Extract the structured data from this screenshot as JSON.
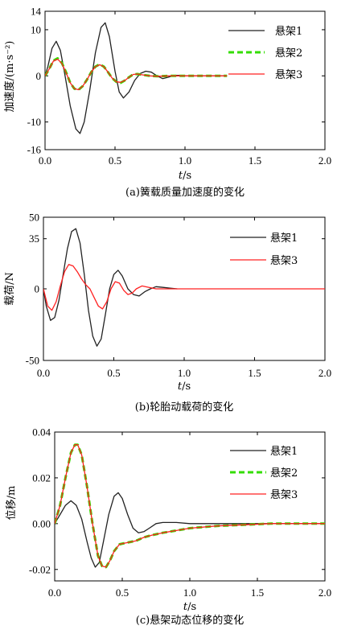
{
  "chart_data": [
    {
      "type": "line",
      "caption": "(a)簧载质量加速度的变化",
      "ylabel": "加速度/(m·s⁻²)",
      "xlabel_italic": "t",
      "xlabel_unit": "/s",
      "xlim": [
        0,
        2.0
      ],
      "ylim": [
        -16,
        14
      ],
      "xticks": [
        "0.0",
        "0.5",
        "1.0",
        "1.5",
        "2.0"
      ],
      "yticks": [
        14,
        10,
        0,
        -10,
        -16
      ],
      "grid": false,
      "legend_position": "top-right",
      "series": [
        {
          "name": "悬架1",
          "color": "#222222",
          "style": "solid",
          "x": [
            0,
            0.02,
            0.05,
            0.08,
            0.11,
            0.14,
            0.18,
            0.22,
            0.25,
            0.28,
            0.32,
            0.36,
            0.4,
            0.43,
            0.46,
            0.5,
            0.53,
            0.56,
            0.6,
            0.64,
            0.68,
            0.72,
            0.76,
            0.8,
            0.84,
            0.88,
            0.92,
            0.96,
            1.0,
            1.1,
            1.2,
            1.3
          ],
          "y": [
            0,
            2.0,
            6.0,
            7.5,
            5.5,
            0.5,
            -6.5,
            -11.5,
            -12.5,
            -10.0,
            -3.0,
            5.0,
            10.5,
            11.5,
            8.5,
            1.0,
            -3.5,
            -4.8,
            -3.5,
            -1.0,
            0.5,
            1.0,
            0.8,
            0.0,
            -0.6,
            -0.3,
            0.1,
            0.1,
            0,
            0,
            0,
            0
          ]
        },
        {
          "name": "悬架2",
          "color": "#33dd00",
          "style": "dashed",
          "x": [
            0,
            0.03,
            0.06,
            0.09,
            0.12,
            0.15,
            0.18,
            0.21,
            0.24,
            0.27,
            0.3,
            0.33,
            0.36,
            0.39,
            0.42,
            0.45,
            0.48,
            0.51,
            0.54,
            0.57,
            0.6,
            0.63,
            0.66,
            0.7,
            0.75,
            0.8,
            0.9,
            1.0,
            1.1,
            1.2,
            1.3
          ],
          "y": [
            0,
            1.5,
            3.3,
            3.8,
            2.8,
            0.8,
            -1.5,
            -2.8,
            -3.0,
            -2.2,
            -0.8,
            0.8,
            2.0,
            2.5,
            2.0,
            0.8,
            -0.5,
            -1.3,
            -1.5,
            -1.0,
            -0.3,
            0.3,
            0.4,
            0.2,
            0.0,
            -0.1,
            0,
            0,
            0,
            0,
            0
          ]
        },
        {
          "name": "悬架3",
          "color": "#ff2020",
          "style": "solid",
          "x": [
            0,
            0.03,
            0.06,
            0.09,
            0.12,
            0.15,
            0.18,
            0.21,
            0.24,
            0.27,
            0.3,
            0.33,
            0.36,
            0.39,
            0.42,
            0.45,
            0.48,
            0.51,
            0.54,
            0.57,
            0.6,
            0.63,
            0.66,
            0.7,
            0.75,
            0.8,
            0.9,
            1.0,
            1.1,
            1.2,
            1.3
          ],
          "y": [
            0,
            1.5,
            3.2,
            3.6,
            2.7,
            0.7,
            -1.5,
            -2.8,
            -3.0,
            -2.2,
            -0.8,
            0.8,
            2.0,
            2.4,
            2.0,
            0.8,
            -0.5,
            -1.3,
            -1.4,
            -1.0,
            -0.3,
            0.3,
            0.4,
            0.2,
            0.0,
            -0.1,
            0,
            0,
            0,
            0,
            0
          ]
        }
      ]
    },
    {
      "type": "line",
      "caption": "(b)轮胎动载荷的变化",
      "ylabel": "载荷/N",
      "xlabel_italic": "t",
      "xlabel_unit": "/s",
      "xlim": [
        0,
        2.0
      ],
      "ylim": [
        -50,
        50
      ],
      "xticks": [
        "0.0",
        "0.5",
        "1.0",
        "1.5",
        "2.0"
      ],
      "yticks": [
        50,
        35,
        0,
        -50
      ],
      "grid": false,
      "legend_position": "top-right",
      "series": [
        {
          "name": "悬架1",
          "color": "#222222",
          "style": "solid",
          "x": [
            0,
            0.02,
            0.05,
            0.08,
            0.11,
            0.14,
            0.17,
            0.2,
            0.23,
            0.26,
            0.29,
            0.32,
            0.35,
            0.38,
            0.41,
            0.44,
            0.47,
            0.5,
            0.53,
            0.56,
            0.6,
            0.64,
            0.68,
            0.72,
            0.76,
            0.8,
            0.85,
            0.9,
            0.95
          ],
          "y": [
            0,
            -12,
            -22,
            -20,
            -8,
            10,
            28,
            40,
            42,
            32,
            10,
            -15,
            -33,
            -40,
            -35,
            -18,
            0,
            10,
            13,
            9,
            0,
            -4,
            -5,
            -2,
            0,
            1.5,
            1,
            0.5,
            0
          ]
        },
        {
          "name": "悬架3",
          "color": "#ff2020",
          "style": "solid",
          "x": [
            0,
            0.03,
            0.06,
            0.09,
            0.12,
            0.15,
            0.18,
            0.21,
            0.24,
            0.27,
            0.3,
            0.33,
            0.36,
            0.39,
            0.42,
            0.45,
            0.48,
            0.51,
            0.54,
            0.57,
            0.6,
            0.63,
            0.66,
            0.7,
            0.75,
            0.8,
            0.9,
            1.0,
            1.5,
            2.0
          ],
          "y": [
            0,
            -12,
            -15,
            -9,
            2,
            12,
            17,
            16,
            12,
            7,
            3,
            0,
            -6,
            -12,
            -14,
            -9,
            0,
            5,
            4,
            -1,
            -4,
            -3,
            0,
            2,
            1,
            0,
            0,
            0,
            0,
            0
          ]
        }
      ]
    },
    {
      "type": "line",
      "caption": "(c)悬架动态位移的变化",
      "ylabel": "位移/m",
      "xlabel_italic": "t",
      "xlabel_unit": "/s",
      "xlim": [
        0,
        2.0
      ],
      "ylim": [
        -0.025,
        0.04
      ],
      "xticks": [
        "0.0",
        "0.5",
        "1.0",
        "1.5",
        "2.0"
      ],
      "yticks": [
        "0.04",
        "0.02",
        "0.00",
        "-0.02"
      ],
      "ytick_values": [
        0.04,
        0.02,
        0.0,
        -0.02
      ],
      "grid": false,
      "legend_position": "top-right",
      "series": [
        {
          "name": "悬架1",
          "color": "#222222",
          "style": "solid",
          "x": [
            0,
            0.04,
            0.08,
            0.12,
            0.16,
            0.2,
            0.24,
            0.27,
            0.3,
            0.33,
            0.36,
            0.4,
            0.44,
            0.47,
            0.5,
            0.54,
            0.58,
            0.62,
            0.66,
            0.7,
            0.75,
            0.8,
            0.9,
            1.0,
            1.2,
            1.5,
            2.0
          ],
          "y": [
            0,
            0.004,
            0.008,
            0.01,
            0.008,
            0.002,
            -0.008,
            -0.015,
            -0.019,
            -0.017,
            -0.008,
            0.004,
            0.012,
            0.0135,
            0.011,
            0.004,
            -0.002,
            -0.004,
            -0.0035,
            -0.002,
            0.0,
            0.0005,
            0.0005,
            0.0,
            0.0,
            0.0,
            0.0
          ]
        },
        {
          "name": "悬架2",
          "color": "#33dd00",
          "style": "dashed",
          "x": [
            0,
            0.04,
            0.08,
            0.12,
            0.15,
            0.17,
            0.2,
            0.24,
            0.28,
            0.32,
            0.35,
            0.38,
            0.41,
            0.44,
            0.48,
            0.52,
            0.56,
            0.6,
            0.66,
            0.72,
            0.8,
            0.9,
            1.0,
            1.2,
            1.4,
            1.6,
            1.8,
            2.0
          ],
          "y": [
            0,
            0.008,
            0.02,
            0.031,
            0.0345,
            0.0345,
            0.03,
            0.016,
            0.0,
            -0.014,
            -0.0185,
            -0.019,
            -0.016,
            -0.012,
            -0.009,
            -0.0085,
            -0.008,
            -0.0075,
            -0.006,
            -0.005,
            -0.004,
            -0.003,
            -0.002,
            -0.001,
            -0.0005,
            0.0,
            0.0,
            0.0
          ]
        },
        {
          "name": "悬架3",
          "color": "#ff2020",
          "style": "solid",
          "x": [
            0,
            0.04,
            0.08,
            0.12,
            0.15,
            0.17,
            0.2,
            0.24,
            0.28,
            0.32,
            0.35,
            0.38,
            0.41,
            0.44,
            0.48,
            0.52,
            0.56,
            0.6,
            0.66,
            0.72,
            0.8,
            0.9,
            1.0,
            1.2,
            1.4,
            1.6,
            1.8,
            2.0
          ],
          "y": [
            0,
            0.008,
            0.02,
            0.031,
            0.0345,
            0.0345,
            0.03,
            0.016,
            0.0,
            -0.014,
            -0.0185,
            -0.019,
            -0.016,
            -0.012,
            -0.009,
            -0.0085,
            -0.008,
            -0.0075,
            -0.006,
            -0.005,
            -0.004,
            -0.003,
            -0.002,
            -0.001,
            -0.0005,
            0.0,
            0.0,
            0.0
          ]
        }
      ]
    }
  ]
}
